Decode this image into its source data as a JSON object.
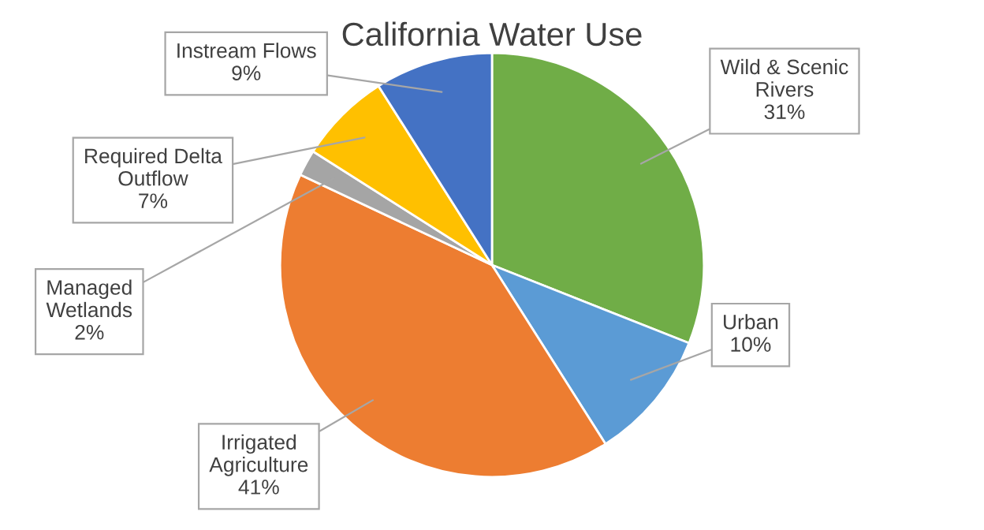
{
  "chart_data": {
    "type": "pie",
    "title": "California Water Use",
    "categories": [
      "Wild & Scenic\nRivers",
      "Urban",
      "Irrigated\nAgriculture",
      "Managed\nWetlands",
      "Required Delta\nOutflow",
      "Instream Flows"
    ],
    "values": [
      31,
      10,
      41,
      2,
      7,
      9
    ],
    "value_labels": [
      "31%",
      "10%",
      "41%",
      "2%",
      "7%",
      "9%"
    ],
    "colors": [
      "#70ad47",
      "#5b9bd5",
      "#ed7d31",
      "#a5a5a5",
      "#ffc000",
      "#4472c4"
    ],
    "legend": false
  }
}
